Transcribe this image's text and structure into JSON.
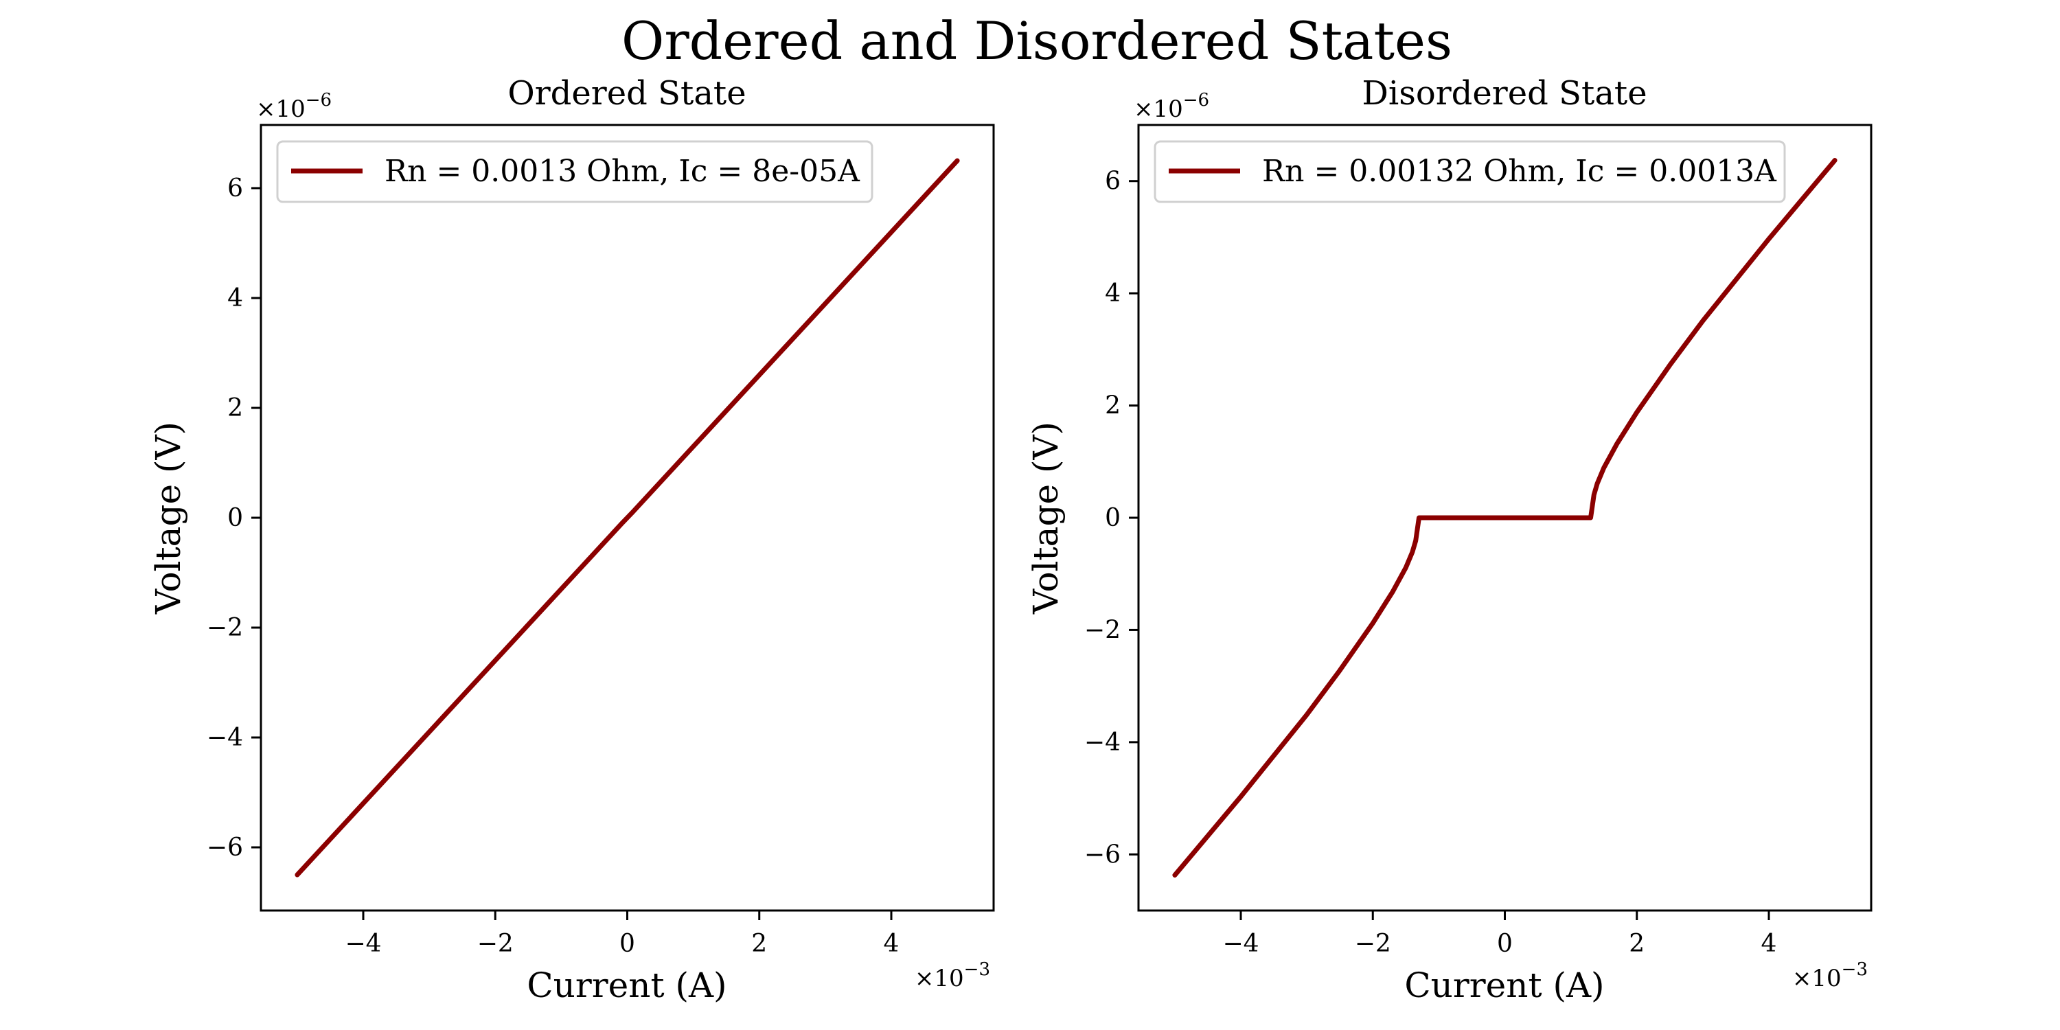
{
  "figure": {
    "title": "Ordered and Disordered States"
  },
  "chart_data": [
    {
      "type": "line",
      "title": "Ordered State",
      "xlabel": "Current (A)",
      "ylabel": "Voltage (V)",
      "x_multiplier": "×10",
      "x_exponent": "−3",
      "y_multiplier": "×10",
      "y_exponent": "−6",
      "xlim": [
        -5.55,
        5.55
      ],
      "ylim": [
        -7.15,
        7.15
      ],
      "xticks": [
        -4,
        -2,
        0,
        2,
        4
      ],
      "yticks": [
        -6,
        -4,
        -2,
        0,
        2,
        4,
        6
      ],
      "xtick_labels": [
        "−4",
        "−2",
        "0",
        "2",
        "4"
      ],
      "ytick_labels": [
        "−6",
        "−4",
        "−2",
        "0",
        "2",
        "4",
        "6"
      ],
      "legend_position": "upper-left",
      "series": [
        {
          "name": "Rn = 0.0013 Ohm, Ic = 8e-05A",
          "color": "#8b0000",
          "x": [
            -5.0,
            -0.08,
            0.08,
            5.0
          ],
          "y": [
            -6.5,
            -0.1,
            0.1,
            6.5
          ]
        }
      ]
    },
    {
      "type": "line",
      "title": "Disordered State",
      "xlabel": "Current (A)",
      "ylabel": "Voltage (V)",
      "x_multiplier": "×10",
      "x_exponent": "−3",
      "y_multiplier": "×10",
      "y_exponent": "−6",
      "xlim": [
        -5.55,
        5.55
      ],
      "ylim": [
        -7.0,
        7.0
      ],
      "xticks": [
        -4,
        -2,
        0,
        2,
        4
      ],
      "yticks": [
        -6,
        -4,
        -2,
        0,
        2,
        4,
        6
      ],
      "xtick_labels": [
        "−4",
        "−2",
        "0",
        "2",
        "4"
      ],
      "ytick_labels": [
        "−6",
        "−4",
        "−2",
        "0",
        "2",
        "4",
        "6"
      ],
      "legend_position": "upper-left",
      "series": [
        {
          "name": "Rn = 0.00132 Ohm, Ic = 0.0013A",
          "color": "#8b0000",
          "x": [
            -5.0,
            -4.0,
            -3.0,
            -2.5,
            -2.0,
            -1.7,
            -1.5,
            -1.4,
            -1.35,
            -1.3,
            1.3,
            1.35,
            1.4,
            1.5,
            1.7,
            2.0,
            2.5,
            3.0,
            4.0,
            5.0
          ],
          "y": [
            -6.37,
            -4.97,
            -3.51,
            -2.72,
            -1.88,
            -1.32,
            -0.89,
            -0.61,
            -0.41,
            0.0,
            0.0,
            0.41,
            0.61,
            0.89,
            1.32,
            1.88,
            2.72,
            3.51,
            4.97,
            6.37
          ]
        }
      ]
    }
  ]
}
